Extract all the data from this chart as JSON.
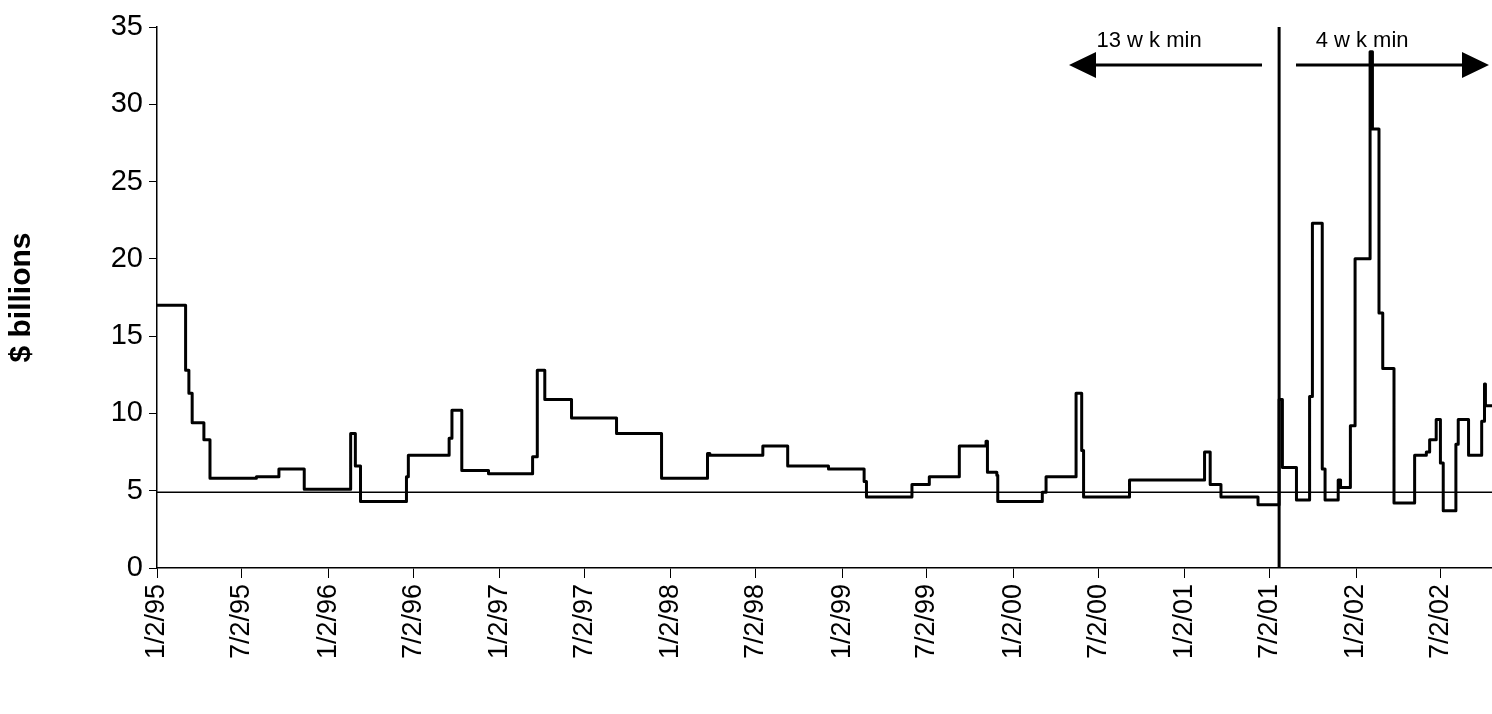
{
  "chart_data": {
    "type": "step",
    "ylabel": "$ billions",
    "annotations": [
      "13 w k min",
      "4 w k min"
    ],
    "x": [
      "1995-01-02",
      "1995-03-04",
      "1995-03-11",
      "1995-03-18",
      "1995-04-12",
      "1995-04-25",
      "1995-08-02",
      "1995-09-19",
      "1995-11-12",
      "1996-02-19",
      "1996-02-29",
      "1996-03-11",
      "1996-06-17",
      "1996-06-21",
      "1996-09-16",
      "1996-09-22",
      "1996-10-13",
      "1996-12-09",
      "1997-03-13",
      "1997-03-23",
      "1997-04-08",
      "1997-06-04",
      "1997-09-08",
      "1997-12-13",
      "1998-03-21",
      "1998-03-26",
      "1998-07-17",
      "1998-09-08",
      "1998-12-04",
      "1999-02-18",
      "1999-02-23",
      "1999-05-31",
      "1999-07-07",
      "1999-09-09",
      "1999-11-05",
      "1999-11-08",
      "1999-11-28",
      "1999-11-30",
      "2000-03-04",
      "2000-03-12",
      "2000-05-15",
      "2000-05-27",
      "2000-05-31",
      "2000-09-06",
      "2001-02-13",
      "2001-02-25",
      "2001-03-20",
      "2001-06-07",
      "2001-07-22",
      "2001-07-29",
      "2001-08-28",
      "2001-09-25",
      "2001-10-01",
      "2001-10-22",
      "2001-10-28",
      "2001-11-25",
      "2001-11-30",
      "2001-12-21",
      "2001-12-31",
      "2002-02-01",
      "2002-02-06",
      "2002-02-20",
      "2002-02-28",
      "2002-03-24",
      "2002-05-07",
      "2002-06-01",
      "2002-06-08",
      "2002-06-22",
      "2002-07-01",
      "2002-07-07",
      "2002-08-03",
      "2002-08-08",
      "2002-08-30",
      "2002-09-27",
      "2002-10-03",
      "2002-10-05",
      "2002-10-19"
    ],
    "series": [
      {
        "color": "#000000",
        "values": [
          17,
          12.8,
          11.3,
          9.4,
          8.3,
          5.8,
          5.9,
          6.4,
          5.1,
          8.7,
          6.6,
          4.3,
          5.9,
          7.3,
          8.4,
          10.2,
          6.3,
          6.1,
          7.2,
          12.8,
          10.9,
          9.7,
          8.7,
          5.8,
          7.4,
          7.3,
          7.9,
          6.6,
          6.4,
          5.6,
          4.6,
          5.4,
          5.9,
          7.9,
          8.2,
          6.2,
          6,
          4.3,
          4.9,
          5.9,
          11.3,
          7.6,
          4.6,
          5.7,
          7.5,
          5.4,
          4.6,
          4.1,
          10.9,
          6.5,
          4.4,
          11.1,
          22.3,
          6.4,
          4.4,
          5.7,
          5.2,
          9.2,
          20,
          33.4,
          28.4,
          16.5,
          12.9,
          4.2,
          7.3,
          7.5,
          8.3,
          9.6,
          6.8,
          3.7,
          8,
          9.6,
          7.3,
          9.5,
          11.9,
          10.5,
          10.5
        ]
      }
    ],
    "xlim": [
      "1995-01-02",
      "2002-10-19"
    ],
    "xticks": [
      {
        "value": "1995-01-02",
        "label": "1/2/95"
      },
      {
        "value": "1995-07-02",
        "label": "7/2/95"
      },
      {
        "value": "1996-01-02",
        "label": "1/2/96"
      },
      {
        "value": "1996-07-02",
        "label": "7/2/96"
      },
      {
        "value": "1997-01-02",
        "label": "1/2/97"
      },
      {
        "value": "1997-07-02",
        "label": "7/2/97"
      },
      {
        "value": "1998-01-02",
        "label": "1/2/98"
      },
      {
        "value": "1998-07-02",
        "label": "7/2/98"
      },
      {
        "value": "1999-01-02",
        "label": "1/2/99"
      },
      {
        "value": "1999-07-02",
        "label": "7/2/99"
      },
      {
        "value": "2000-01-02",
        "label": "1/2/00"
      },
      {
        "value": "2000-07-02",
        "label": "7/2/00"
      },
      {
        "value": "2001-01-02",
        "label": "1/2/01"
      },
      {
        "value": "2001-07-02",
        "label": "7/2/01"
      },
      {
        "value": "2002-01-02",
        "label": "1/2/02"
      },
      {
        "value": "2002-07-02",
        "label": "7/2/02"
      }
    ],
    "ylim": [
      0,
      35
    ],
    "yticks": [
      0,
      5,
      10,
      15,
      20,
      25,
      30,
      35
    ],
    "ref_lines": [
      {
        "axis": "y",
        "value": 4.9,
        "color": "#000000"
      },
      {
        "axis": "x",
        "value": "2001-07-22",
        "color": "#000000"
      }
    ],
    "grid": false,
    "legend": false,
    "marker": "none",
    "line_style": "solid"
  }
}
